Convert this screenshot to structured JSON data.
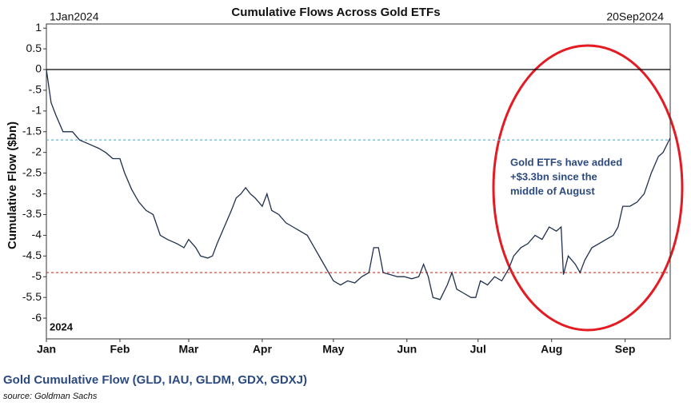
{
  "chart_data": {
    "type": "line",
    "title": "Cumulative Flows Across Gold ETFs",
    "start_label": "1Jan2024",
    "end_label": "20Sep2024",
    "year_label": "2024",
    "y_label": "Cumulative Flow ($bn)",
    "footer_title": "Gold Cumulative Flow (GLD, IAU, GLDM, GDX, GDXJ)",
    "source": "source: Goldman Sachs",
    "annotation": [
      "Gold ETFs have added",
      "+$3.3bn since the",
      "middle of August"
    ],
    "xlim": [
      0,
      263
    ],
    "ylim": [
      -6.5,
      1.1
    ],
    "xticks": [
      {
        "value": 0,
        "label": "Jan"
      },
      {
        "value": 31,
        "label": "Feb"
      },
      {
        "value": 60,
        "label": "Mar"
      },
      {
        "value": 91,
        "label": "Apr"
      },
      {
        "value": 121,
        "label": "May"
      },
      {
        "value": 152,
        "label": "Jun"
      },
      {
        "value": 182,
        "label": "Jul"
      },
      {
        "value": 213,
        "label": "Aug"
      },
      {
        "value": 244,
        "label": "Sep"
      }
    ],
    "yticks": [
      1,
      0.5,
      0,
      {
        "value": -0.5,
        "label": "-.5"
      },
      -1,
      -1.5,
      -2,
      -2.5,
      -3,
      -3.5,
      -4,
      -4.5,
      -5,
      -5.5,
      -6
    ],
    "hlines": [
      {
        "value": 0,
        "color": "#000000",
        "dashed": false
      },
      {
        "value": -1.7,
        "color": "#6fb3c8",
        "dashed": true
      },
      {
        "value": -4.9,
        "color": "#c0392b",
        "dashed": true
      }
    ],
    "series": [
      {
        "name": "Cumulative Flow",
        "color": "#1f2f4f",
        "x": [
          0,
          2,
          4,
          7,
          11,
          14,
          18,
          22,
          25,
          28,
          31,
          33,
          36,
          39,
          42,
          45,
          48,
          51,
          55,
          58,
          60,
          63,
          65,
          68,
          70,
          72,
          75,
          78,
          80,
          82,
          84,
          86,
          88,
          91,
          93,
          95,
          98,
          101,
          104,
          107,
          110,
          113,
          116,
          119,
          121,
          124,
          127,
          130,
          133,
          136,
          138,
          140,
          142,
          145,
          148,
          151,
          154,
          157,
          159,
          161,
          163,
          166,
          169,
          171,
          173,
          176,
          179,
          181,
          183,
          186,
          189,
          192,
          195,
          197,
          200,
          203,
          206,
          209,
          212,
          215,
          217,
          218,
          220,
          223,
          225,
          227,
          230,
          233,
          236,
          239,
          241,
          243,
          246,
          249,
          252,
          255,
          258,
          260,
          263
        ],
        "values": [
          0,
          -0.8,
          -1.1,
          -1.5,
          -1.5,
          -1.7,
          -1.8,
          -1.9,
          -2.0,
          -2.15,
          -2.15,
          -2.5,
          -2.9,
          -3.2,
          -3.4,
          -3.5,
          -4.0,
          -4.1,
          -4.2,
          -4.3,
          -4.1,
          -4.3,
          -4.5,
          -4.55,
          -4.5,
          -4.2,
          -3.8,
          -3.4,
          -3.1,
          -3.0,
          -2.85,
          -3.0,
          -3.1,
          -3.3,
          -3.0,
          -3.4,
          -3.5,
          -3.7,
          -3.8,
          -3.9,
          -4.0,
          -4.3,
          -4.6,
          -4.9,
          -5.1,
          -5.2,
          -5.1,
          -5.15,
          -5.0,
          -4.9,
          -4.3,
          -4.3,
          -4.9,
          -4.95,
          -5.0,
          -5.0,
          -5.05,
          -5.0,
          -4.7,
          -5.0,
          -5.5,
          -5.55,
          -5.2,
          -4.9,
          -5.3,
          -5.4,
          -5.5,
          -5.5,
          -5.1,
          -5.2,
          -5.0,
          -5.1,
          -4.8,
          -4.5,
          -4.3,
          -4.2,
          -4.0,
          -4.1,
          -3.8,
          -3.9,
          -3.8,
          -4.95,
          -4.5,
          -4.7,
          -4.9,
          -4.6,
          -4.3,
          -4.2,
          -4.1,
          -4.0,
          -3.8,
          -3.3,
          -3.3,
          -3.2,
          -3.0,
          -2.5,
          -2.1,
          -2.0,
          -1.65
        ]
      }
    ]
  }
}
